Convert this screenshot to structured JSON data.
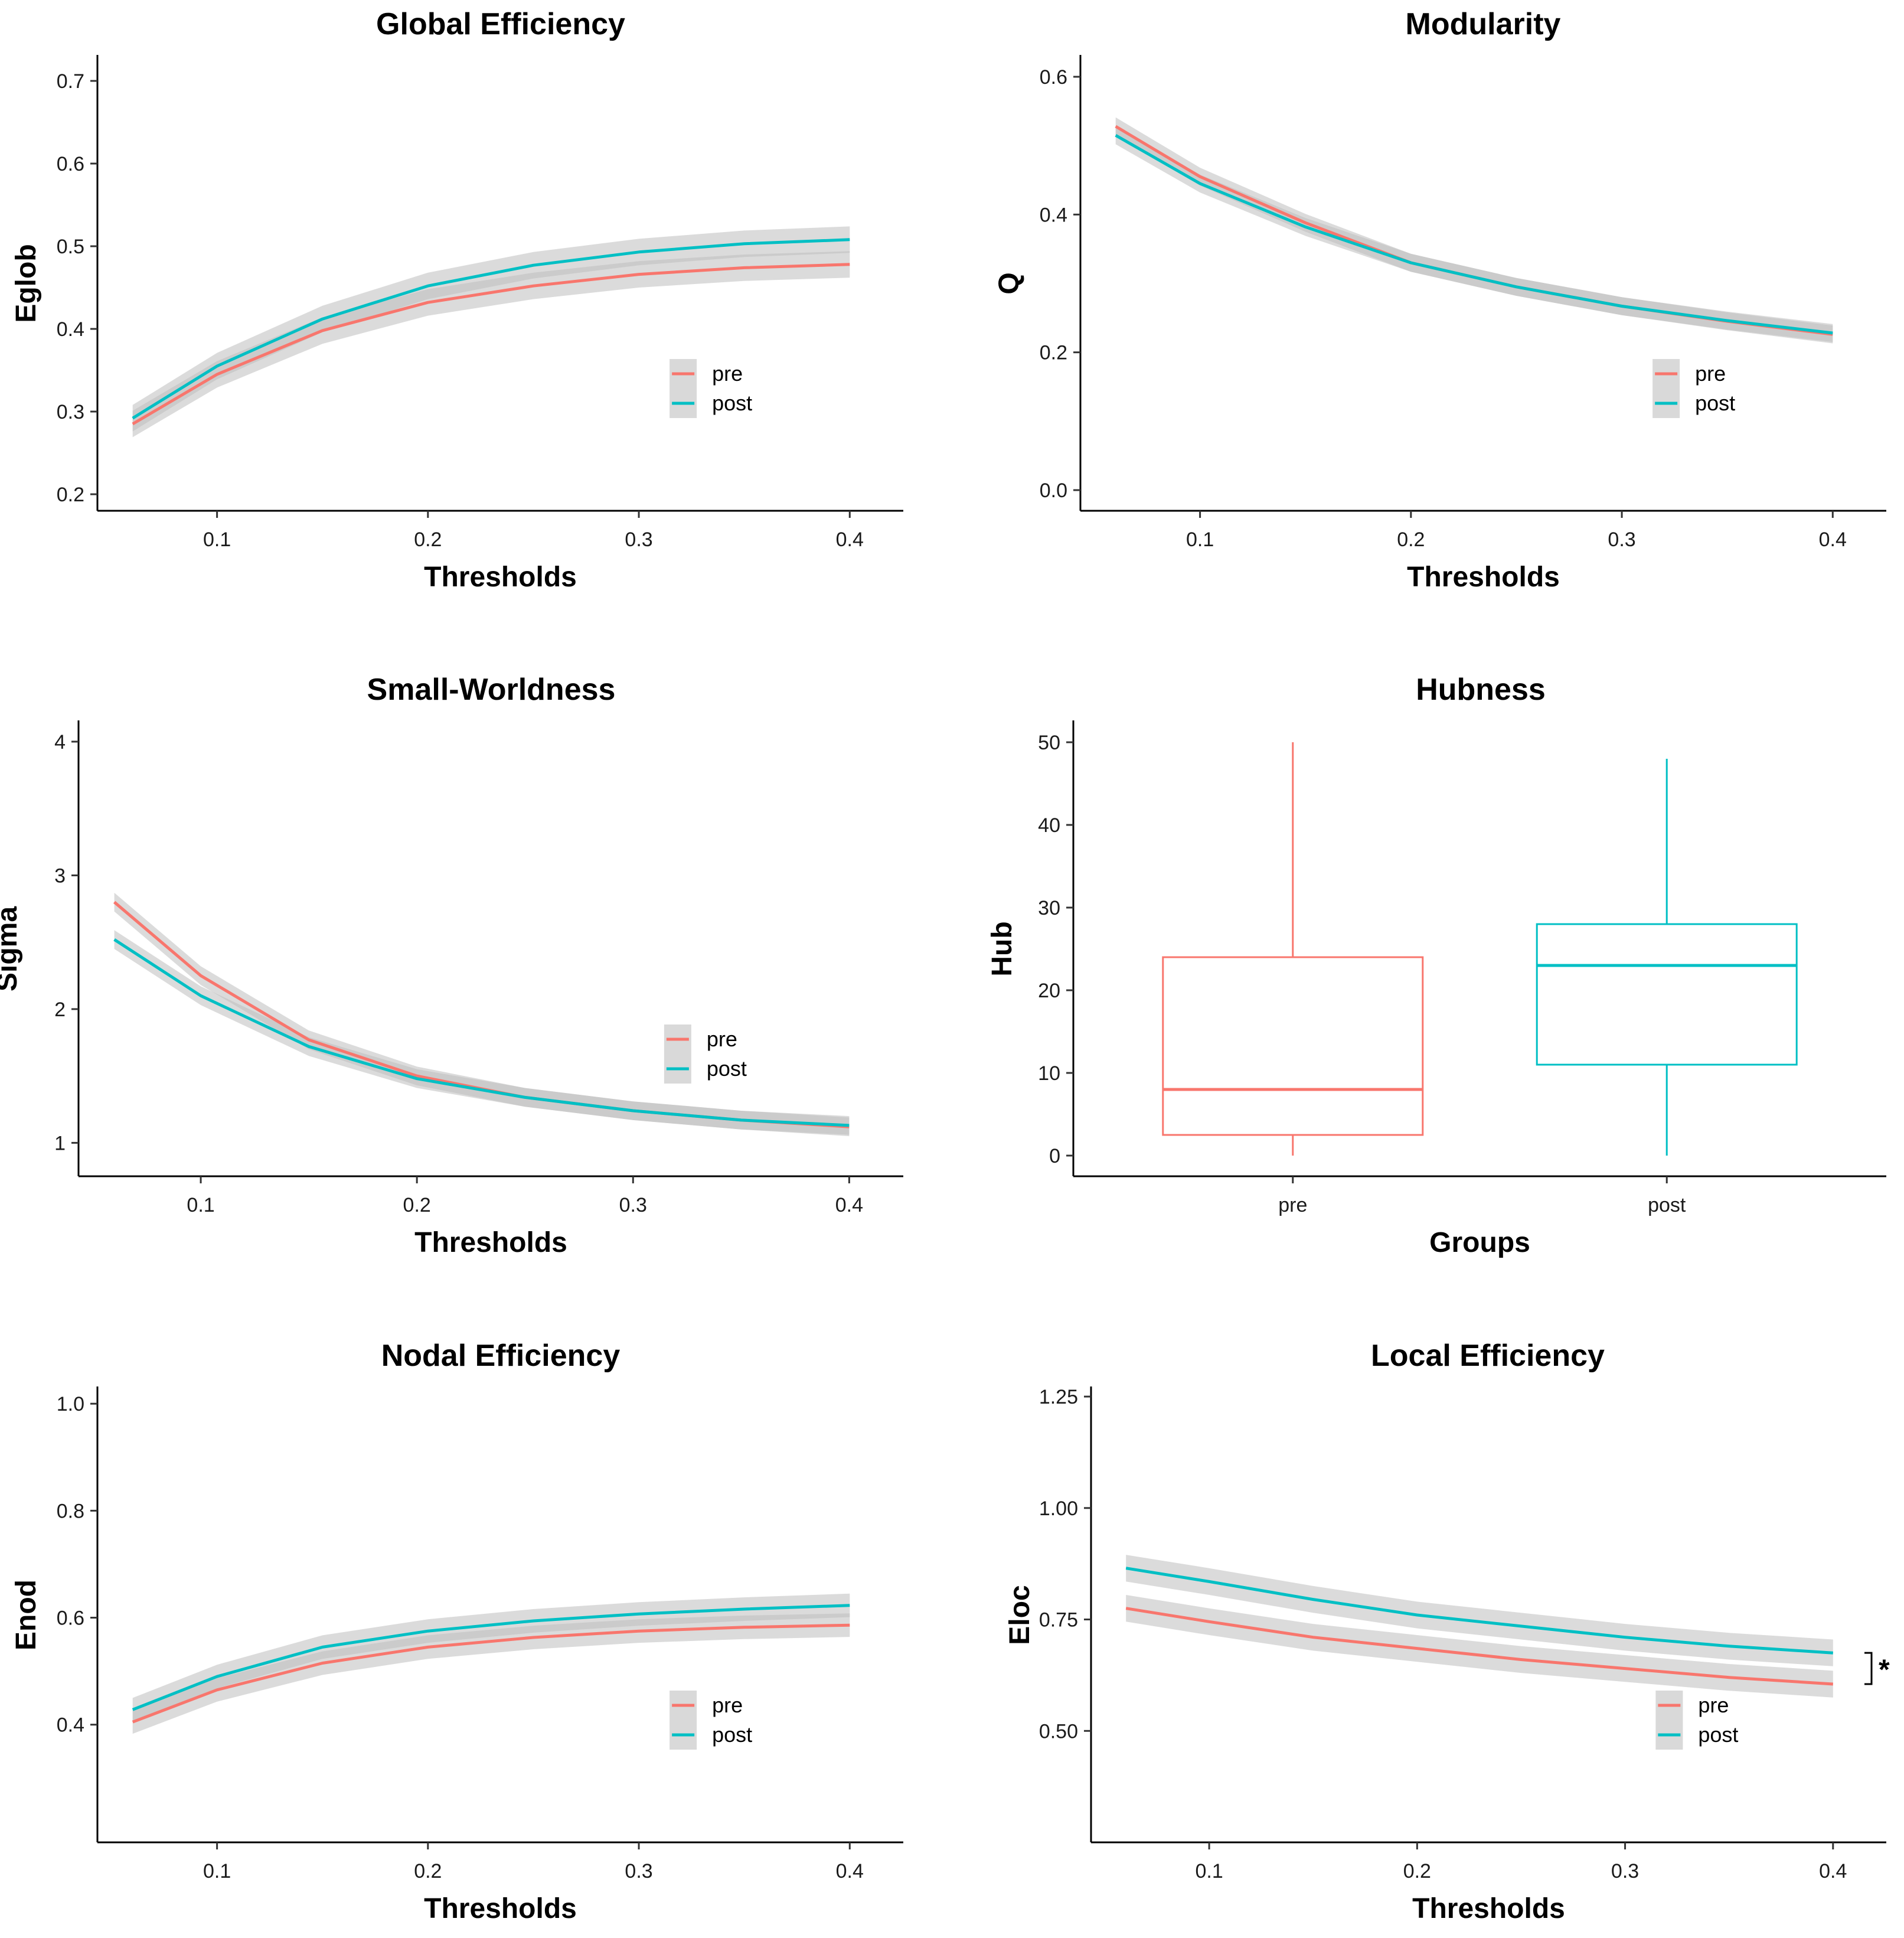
{
  "colors": {
    "pre": "#F8766D",
    "post": "#00BFC4",
    "ribbon": "#bdbdbd"
  },
  "chart_data": [
    {
      "id": "global-efficiency",
      "type": "line",
      "title": "Global Efficiency",
      "xlabel": "Thresholds",
      "ylabel": "Eglob",
      "xlim": [
        0.05,
        0.41
      ],
      "ylim": [
        0.18,
        0.73
      ],
      "xticks": [
        0.1,
        0.2,
        0.3,
        0.4
      ],
      "xticklabels": [
        "0.1",
        "0.2",
        "0.3",
        "0.4"
      ],
      "yticks": [
        0.2,
        0.3,
        0.4,
        0.5,
        0.6,
        0.7
      ],
      "yticklabels": [
        "0.2",
        "0.3",
        "0.4",
        "0.5",
        "0.6",
        "0.7"
      ],
      "ci_halfwidth": 0.016,
      "x": [
        0.06,
        0.1,
        0.15,
        0.2,
        0.25,
        0.3,
        0.35,
        0.4
      ],
      "series": [
        {
          "name": "pre",
          "values": [
            0.285,
            0.345,
            0.398,
            0.432,
            0.452,
            0.466,
            0.474,
            0.478
          ]
        },
        {
          "name": "post",
          "values": [
            0.292,
            0.355,
            0.412,
            0.452,
            0.477,
            0.493,
            0.503,
            0.508
          ]
        }
      ],
      "legend": {
        "position": "bottom-right",
        "labels": [
          "pre",
          "post"
        ]
      }
    },
    {
      "id": "modularity",
      "type": "line",
      "title": "Modularity",
      "xlabel": "Thresholds",
      "ylabel": "Q",
      "xlim": [
        0.05,
        0.41
      ],
      "ylim": [
        -0.03,
        0.63
      ],
      "xticks": [
        0.1,
        0.2,
        0.3,
        0.4
      ],
      "xticklabels": [
        "0.1",
        "0.2",
        "0.3",
        "0.4"
      ],
      "yticks": [
        0.0,
        0.2,
        0.4,
        0.6
      ],
      "yticklabels": [
        "0.0",
        "0.2",
        "0.4",
        "0.6"
      ],
      "ci_halfwidth": 0.013,
      "x": [
        0.06,
        0.1,
        0.15,
        0.2,
        0.25,
        0.3,
        0.35,
        0.4
      ],
      "series": [
        {
          "name": "pre",
          "values": [
            0.528,
            0.455,
            0.388,
            0.33,
            0.295,
            0.267,
            0.245,
            0.226
          ]
        },
        {
          "name": "post",
          "values": [
            0.515,
            0.445,
            0.382,
            0.33,
            0.295,
            0.267,
            0.246,
            0.228
          ]
        }
      ],
      "legend": {
        "position": "bottom-right",
        "labels": [
          "pre",
          "post"
        ]
      }
    },
    {
      "id": "small-worldness",
      "type": "line",
      "title": "Small-Worldness",
      "xlabel": "Thresholds",
      "ylabel": "Sigma",
      "xlim": [
        0.05,
        0.41
      ],
      "ylim": [
        0.75,
        4.15
      ],
      "xticks": [
        0.1,
        0.2,
        0.3,
        0.4
      ],
      "xticklabels": [
        "0.1",
        "0.2",
        "0.3",
        "0.4"
      ],
      "yticks": [
        1,
        2,
        3,
        4
      ],
      "yticklabels": [
        "1",
        "2",
        "3",
        "4"
      ],
      "ci_halfwidth": 0.07,
      "x": [
        0.06,
        0.1,
        0.15,
        0.2,
        0.25,
        0.3,
        0.35,
        0.4
      ],
      "series": [
        {
          "name": "pre",
          "values": [
            2.8,
            2.25,
            1.77,
            1.5,
            1.34,
            1.24,
            1.17,
            1.12
          ]
        },
        {
          "name": "post",
          "values": [
            2.52,
            2.1,
            1.72,
            1.48,
            1.34,
            1.24,
            1.17,
            1.13
          ]
        }
      ],
      "legend": {
        "position": "bottom-right",
        "labels": [
          "pre",
          "post"
        ]
      }
    },
    {
      "id": "hubness",
      "type": "box",
      "title": "Hubness",
      "xlabel": "Groups",
      "ylabel": "Hub",
      "ylim": [
        -2.5,
        52.5
      ],
      "yticks": [
        0,
        10,
        20,
        30,
        40,
        50
      ],
      "yticklabels": [
        "0",
        "10",
        "20",
        "30",
        "40",
        "50"
      ],
      "categories": [
        "pre",
        "post"
      ],
      "boxes": [
        {
          "name": "pre",
          "min": 0,
          "q1": 2.5,
          "median": 8,
          "q3": 24,
          "max": 50
        },
        {
          "name": "post",
          "min": 0,
          "q1": 11,
          "median": 23,
          "q3": 28,
          "max": 48
        }
      ]
    },
    {
      "id": "nodal-efficiency",
      "type": "line",
      "title": "Nodal Efficiency",
      "xlabel": "Thresholds",
      "ylabel": "Enod",
      "xlim": [
        0.05,
        0.41
      ],
      "ylim": [
        0.18,
        1.03
      ],
      "xticks": [
        0.1,
        0.2,
        0.3,
        0.4
      ],
      "xticklabels": [
        "0.1",
        "0.2",
        "0.3",
        "0.4"
      ],
      "yticks": [
        0.4,
        0.6,
        0.8,
        1.0
      ],
      "yticklabels": [
        "0.4",
        "0.6",
        "0.8",
        "1.0"
      ],
      "ci_halfwidth": 0.022,
      "x": [
        0.06,
        0.1,
        0.15,
        0.2,
        0.25,
        0.3,
        0.35,
        0.4
      ],
      "series": [
        {
          "name": "pre",
          "values": [
            0.405,
            0.465,
            0.515,
            0.545,
            0.563,
            0.575,
            0.582,
            0.586
          ]
        },
        {
          "name": "post",
          "values": [
            0.428,
            0.49,
            0.545,
            0.575,
            0.594,
            0.607,
            0.616,
            0.623
          ]
        }
      ],
      "legend": {
        "position": "bottom-right",
        "labels": [
          "pre",
          "post"
        ]
      }
    },
    {
      "id": "local-efficiency",
      "type": "line",
      "title": "Local Efficiency",
      "xlabel": "Thresholds",
      "ylabel": "Eloc",
      "xlim": [
        0.05,
        0.41
      ],
      "ylim": [
        0.25,
        1.27
      ],
      "xticks": [
        0.1,
        0.2,
        0.3,
        0.4
      ],
      "xticklabels": [
        "0.1",
        "0.2",
        "0.3",
        "0.4"
      ],
      "yticks": [
        0.5,
        0.75,
        1.0,
        1.25
      ],
      "yticklabels": [
        "0.50",
        "0.75",
        "1.00",
        "1.25"
      ],
      "ci_halfwidth": 0.03,
      "x": [
        0.06,
        0.1,
        0.15,
        0.2,
        0.25,
        0.3,
        0.35,
        0.4
      ],
      "series": [
        {
          "name": "pre",
          "values": [
            0.775,
            0.745,
            0.71,
            0.685,
            0.66,
            0.64,
            0.62,
            0.605
          ]
        },
        {
          "name": "post",
          "values": [
            0.865,
            0.835,
            0.795,
            0.76,
            0.735,
            0.71,
            0.69,
            0.675
          ]
        }
      ],
      "legend": {
        "position": "bottom-right",
        "labels": [
          "pre",
          "post"
        ]
      },
      "annotation": "*"
    }
  ]
}
